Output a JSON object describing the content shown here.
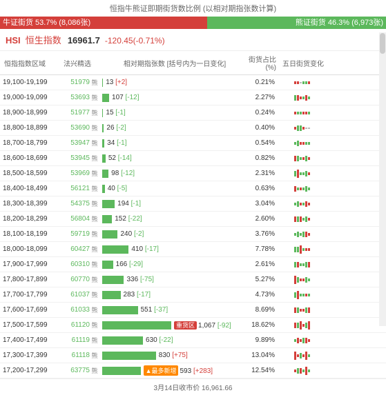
{
  "title": "恒指牛熊证即期街货数比例 (以相对期指张数计算)",
  "ratio": {
    "bull_label": "牛证街货 53.7% (8,086张)",
    "bull_pct": 53.7,
    "bear_label": "熊证街货 46.3% (6,973张)",
    "bear_pct": 46.3
  },
  "index": {
    "code": "HSI",
    "name": "恒生指数",
    "value": "16961.7",
    "change": "-120.45(-0.71%)"
  },
  "headers": {
    "range": "恒指指数区域",
    "warrant": "法兴精选",
    "bars": "相对期指张数 [括号内为一日变化]",
    "pct": "街货占比(%)",
    "spark": "五日街货变化"
  },
  "max_bar": 1067,
  "colors": {
    "up": "#d43f3a",
    "down": "#5cb85c",
    "neutral": "#bbbbbb"
  },
  "rows": [
    {
      "range": "19,100-19,199",
      "warrant": "51979",
      "value": 13,
      "chg": "+2",
      "chgdir": "pos",
      "pct": "0.21%",
      "spark": [
        1,
        1,
        0,
        -1,
        -1,
        1
      ]
    },
    {
      "range": "19,000-19,099",
      "warrant": "53693",
      "value": 107,
      "chg": "-12",
      "chgdir": "neg",
      "pct": "2.27%",
      "spark": [
        -2,
        2,
        1,
        -1,
        2,
        -1
      ]
    },
    {
      "range": "18,900-18,999",
      "warrant": "51977",
      "value": 15,
      "chg": "-1",
      "chgdir": "neg",
      "pct": "0.24%",
      "spark": [
        1,
        -1,
        -1,
        1,
        1,
        -1
      ]
    },
    {
      "range": "18,800-18,899",
      "warrant": "53690",
      "value": 26,
      "chg": "-2",
      "chgdir": "neg",
      "pct": "0.40%",
      "spark": [
        1,
        -2,
        -2,
        1,
        0,
        0
      ]
    },
    {
      "range": "18,700-18,799",
      "warrant": "53947",
      "value": 34,
      "chg": "-1",
      "chgdir": "neg",
      "pct": "0.54%",
      "spark": [
        -1,
        -2,
        1,
        1,
        -1,
        -1
      ]
    },
    {
      "range": "18,600-18,699",
      "warrant": "53945",
      "value": 52,
      "chg": "-14",
      "chgdir": "neg",
      "pct": "0.82%",
      "spark": [
        2,
        -2,
        -1,
        1,
        -2,
        1
      ]
    },
    {
      "range": "18,500-18,599",
      "warrant": "53969",
      "value": 98,
      "chg": "-12",
      "chgdir": "neg",
      "pct": "2.31%",
      "spark": [
        -2,
        3,
        -1,
        -1,
        -2,
        1
      ]
    },
    {
      "range": "18,400-18,499",
      "warrant": "56121",
      "value": 40,
      "chg": "-5",
      "chgdir": "neg",
      "pct": "0.63%",
      "spark": [
        2,
        -1,
        1,
        -1,
        -2,
        -1
      ]
    },
    {
      "range": "18,300-18,399",
      "warrant": "54375",
      "value": 194,
      "chg": "-1",
      "chgdir": "neg",
      "pct": "3.04%",
      "spark": [
        -1,
        -2,
        1,
        -1,
        2,
        1
      ]
    },
    {
      "range": "18,200-18,299",
      "warrant": "56804",
      "value": 152,
      "chg": "-22",
      "chgdir": "neg",
      "pct": "2.60%",
      "spark": [
        2,
        -2,
        2,
        -1,
        -2,
        1
      ]
    },
    {
      "range": "18,100-18,199",
      "warrant": "59719",
      "value": 240,
      "chg": "-2",
      "chgdir": "neg",
      "pct": "3.76%",
      "spark": [
        -1,
        -2,
        -1,
        -2,
        2,
        1
      ]
    },
    {
      "range": "18,000-18,099",
      "warrant": "60427",
      "value": 410,
      "chg": "-17",
      "chgdir": "neg",
      "pct": "7.78%",
      "spark": [
        -2,
        -2,
        3,
        -1,
        1,
        1
      ]
    },
    {
      "range": "17,900-17,999",
      "warrant": "60310",
      "value": 166,
      "chg": "-29",
      "chgdir": "neg",
      "pct": "2.61%",
      "spark": [
        -2,
        2,
        -1,
        -1,
        -2,
        2
      ]
    },
    {
      "range": "17,800-17,899",
      "warrant": "60770",
      "value": 336,
      "chg": "-75",
      "chgdir": "neg",
      "pct": "5.27%",
      "spark": [
        3,
        -2,
        1,
        1,
        -2,
        -1
      ]
    },
    {
      "range": "17,700-17,799",
      "warrant": "61037",
      "value": 283,
      "chg": "-17",
      "chgdir": "neg",
      "pct": "4.73%",
      "spark": [
        -2,
        3,
        -1,
        -1,
        1,
        -1
      ]
    },
    {
      "range": "17,600-17,699",
      "warrant": "61033",
      "value": 551,
      "chg": "-37",
      "chgdir": "neg",
      "pct": "8.69%",
      "spark": [
        2,
        -2,
        1,
        1,
        -2,
        2
      ]
    },
    {
      "range": "17,500-17,599",
      "warrant": "61120",
      "value": 1067,
      "chg": "-92",
      "chgdir": "neg",
      "pct": "18.62%",
      "badge": "重货区",
      "spark": [
        2,
        -2,
        3,
        1,
        -2,
        3
      ]
    },
    {
      "range": "17,400-17,499",
      "warrant": "61119",
      "value": 630,
      "chg": "-22",
      "chgdir": "neg",
      "pct": "9.89%",
      "spark": [
        -1,
        2,
        1,
        -2,
        2,
        1
      ]
    },
    {
      "range": "17,300-17,399",
      "warrant": "61118",
      "value": 830,
      "chg": "+75",
      "chgdir": "pos",
      "pct": "13.04%",
      "spark": [
        3,
        1,
        -2,
        1,
        3,
        -1
      ]
    },
    {
      "range": "17,200-17,299",
      "warrant": "63775",
      "value": 593,
      "chg": "+283",
      "chgdir": "pos",
      "pct": "12.54%",
      "hot": "▲最多新增",
      "spark": [
        1,
        -2,
        2,
        -1,
        3,
        -1
      ]
    }
  ],
  "footer": "3月14日收市价 16,961.66"
}
